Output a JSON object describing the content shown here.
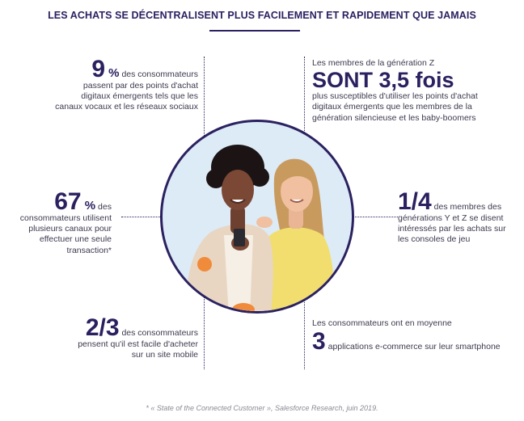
{
  "title": "LES ACHATS SE DÉCENTRALISENT PLUS FACILEMENT ET RAPIDEMENT QUE JAMAIS",
  "stats": {
    "s1": {
      "number": "9",
      "unit": " %",
      "line1": " des consommateurs",
      "line2": "passent par des points d'achat",
      "line3": "digitaux émergents tels que les",
      "line4": "canaux vocaux et les réseaux sociaux"
    },
    "s2": {
      "line1": "Les membres de la génération Z",
      "big": "SONT 3,5 fois",
      "line2": "plus susceptibles d'utiliser les points d'achat",
      "line3": "digitaux émergents que les membres de la",
      "line4": "génération silencieuse et les baby-boomers"
    },
    "s3": {
      "number": "67",
      "unit": " %",
      "line1": " des",
      "line2": "consommateurs utilisent",
      "line3": "plusieurs canaux pour",
      "line4": "effectuer une seule",
      "line5": "transaction*"
    },
    "s4": {
      "number": "1/4",
      "line1": " des membres des",
      "line2": "générations Y et Z se disent",
      "line3": "intéressés par les achats sur",
      "line4": "les consoles de jeu"
    },
    "s5": {
      "number": "2/3",
      "line1": " des consommateurs",
      "line2": "pensent qu'il est facile d'acheter",
      "line3": "sur un site mobile"
    },
    "s6": {
      "line1": "Les consommateurs ont en moyenne",
      "number": "3",
      "line2": "applications e-commerce sur leur smartphone"
    }
  },
  "footnote": "* « State of the Connected Customer », Salesforce Research, juin 2019.",
  "colors": {
    "navy": "#2b2160",
    "text": "#3d3a4e",
    "circle_bg": "#dcebf6",
    "yellow": "#f1de6f",
    "beige": "#e8d6c3",
    "orange": "#f08b3b"
  }
}
